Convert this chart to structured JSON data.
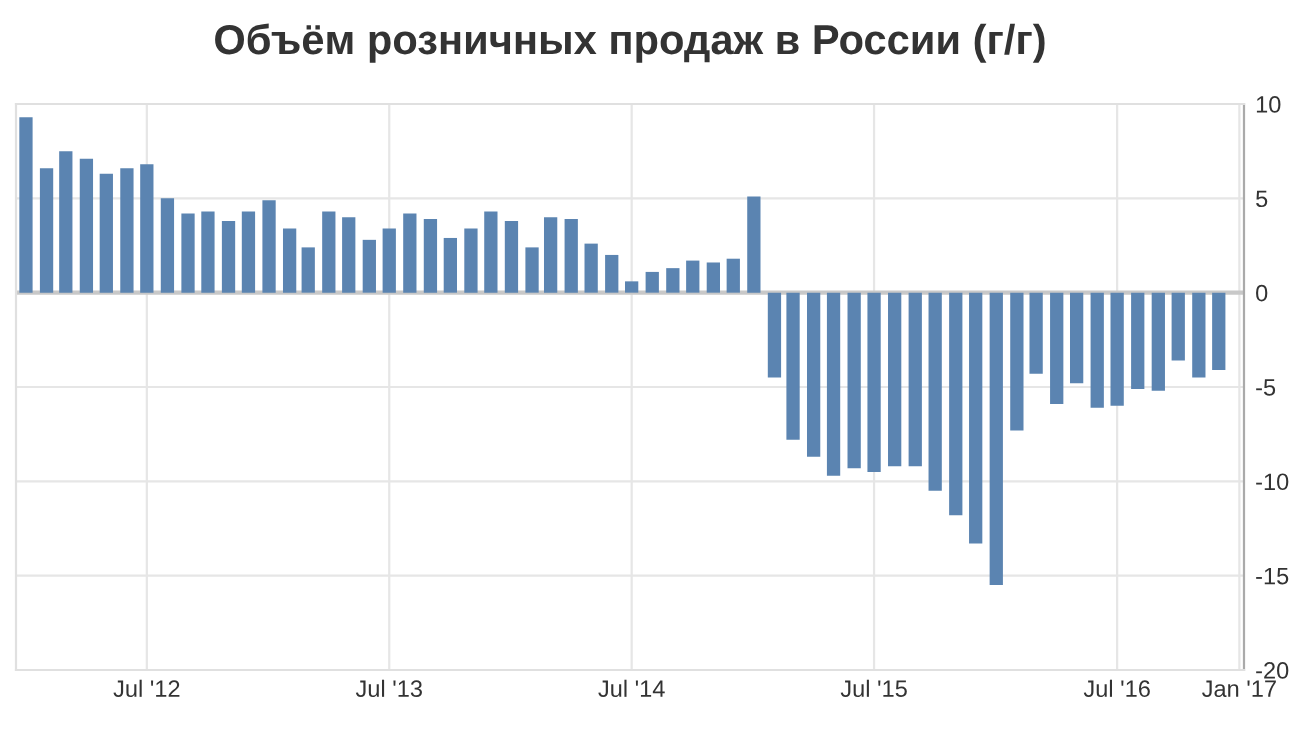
{
  "chart_data": {
    "type": "bar",
    "title": "Объём розничных продаж в России (г/г)",
    "x": [
      "2012-01",
      "2012-02",
      "2012-03",
      "2012-04",
      "2012-05",
      "2012-06",
      "2012-07",
      "2012-08",
      "2012-09",
      "2012-10",
      "2012-11",
      "2012-12",
      "2013-01",
      "2013-02",
      "2013-03",
      "2013-04",
      "2013-05",
      "2013-06",
      "2013-07",
      "2013-08",
      "2013-09",
      "2013-10",
      "2013-11",
      "2013-12",
      "2014-01",
      "2014-02",
      "2014-03",
      "2014-04",
      "2014-05",
      "2014-06",
      "2014-07",
      "2014-08",
      "2014-09",
      "2014-10",
      "2014-11",
      "2014-12",
      "2015-01",
      "2015-02",
      "2015-03",
      "2015-04",
      "2015-05",
      "2015-06",
      "2015-07",
      "2015-08",
      "2015-09",
      "2015-10",
      "2015-11",
      "2015-12",
      "2016-01",
      "2016-02",
      "2016-03",
      "2016-04",
      "2016-05",
      "2016-06",
      "2016-07",
      "2016-08",
      "2016-09",
      "2016-10",
      "2016-11",
      "2016-12"
    ],
    "series": [
      {
        "color": "#5b84b1",
        "values": [
          9.3,
          6.6,
          7.5,
          7.1,
          6.3,
          6.6,
          6.8,
          5.0,
          4.2,
          4.3,
          3.8,
          4.3,
          4.9,
          3.4,
          2.4,
          4.3,
          4.0,
          2.8,
          3.4,
          4.2,
          3.9,
          2.9,
          3.4,
          4.3,
          3.8,
          2.4,
          4.0,
          3.9,
          2.6,
          2.0,
          0.6,
          1.1,
          1.3,
          1.7,
          1.6,
          1.8,
          5.1,
          -4.5,
          -7.8,
          -8.7,
          -9.7,
          -9.3,
          -9.5,
          -9.2,
          -9.2,
          -10.5,
          -11.8,
          -13.3,
          -15.5,
          -7.3,
          -4.3,
          -5.9,
          -4.8,
          -6.1,
          -6.0,
          -5.1,
          -5.2,
          -3.6,
          -4.5,
          -4.1
        ]
      }
    ],
    "xlim": [
      "2011-12-17",
      "2017-01-08"
    ],
    "xticks": [
      {
        "value": "2012-07",
        "label": "Jul '12"
      },
      {
        "value": "2013-07",
        "label": "Jul '13"
      },
      {
        "value": "2014-07",
        "label": "Jul '14"
      },
      {
        "value": "2015-07",
        "label": "Jul '15"
      },
      {
        "value": "2016-07",
        "label": "Jul '16"
      },
      {
        "value": "2017-01",
        "label": "Jan '17"
      }
    ],
    "ylim": [
      -20,
      10
    ],
    "yticks": [
      -20,
      -15,
      -10,
      -5,
      0,
      5,
      10
    ],
    "grid": true
  }
}
